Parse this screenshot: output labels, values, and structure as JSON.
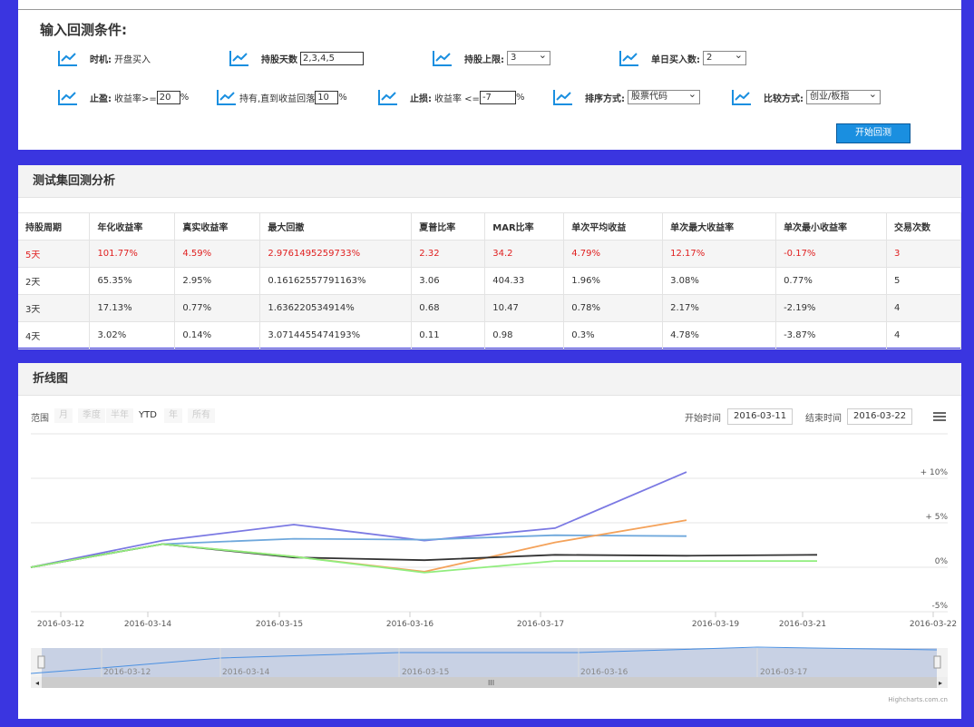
{
  "conditions": {
    "title": "输入回测条件:",
    "timing_label": "时机:",
    "timing_value": "开盘买入",
    "hold_days_label": "持股天数",
    "hold_days_value": "2,3,4,5",
    "hold_max_label": "持股上限:",
    "hold_max_value": "3",
    "daily_buy_label": "单日买入数:",
    "daily_buy_value": "2",
    "stop_profit_label": "止盈:",
    "stop_profit_text": "收益率>=",
    "stop_profit_value": "20",
    "stop_profit_unit": "%",
    "hold_label": "持有,直到收益回落",
    "hold_value": "10",
    "hold_unit": "%",
    "stop_loss_label": "止损:",
    "stop_loss_text": "收益率 <=",
    "stop_loss_value": "-7",
    "stop_loss_unit": "%",
    "sort_label": "排序方式:",
    "sort_value": "股票代码",
    "compare_label": "比较方式:",
    "compare_value": "创业/板指",
    "start_button": "开始回测"
  },
  "analysis": {
    "title": "测试集回测分析",
    "headers": [
      "持股周期",
      "年化收益率",
      "真实收益率",
      "最大回撤",
      "夏普比率",
      "MAR比率",
      "单次平均收益",
      "单次最大收益率",
      "单次最小收益率",
      "交易次数"
    ],
    "rows": [
      [
        "5天",
        "101.77%",
        "4.59%",
        "2.9761495259733%",
        "2.32",
        "34.2",
        "4.79%",
        "12.17%",
        "-0.17%",
        "3"
      ],
      [
        "2天",
        "65.35%",
        "2.95%",
        "0.16162557791163%",
        "3.06",
        "404.33",
        "1.96%",
        "3.08%",
        "0.77%",
        "5"
      ],
      [
        "3天",
        "17.13%",
        "0.77%",
        "1.636220534914%",
        "0.68",
        "10.47",
        "0.78%",
        "2.17%",
        "-2.19%",
        "4"
      ],
      [
        "4天",
        "3.02%",
        "0.14%",
        "3.0714455474193%",
        "0.11",
        "0.98",
        "0.3%",
        "4.78%",
        "-3.87%",
        "4"
      ]
    ]
  },
  "chart_panel": {
    "title": "折线图",
    "range_label": "范围",
    "range_buttons": [
      "月",
      "季度",
      "半年",
      "YTD",
      "年",
      "所有"
    ],
    "start_label": "开始时间",
    "start_date": "2016-03-11",
    "end_label": "结束时间",
    "end_date": "2016-03-22",
    "credit": "Highcharts.com.cn"
  },
  "chart_data": {
    "type": "line",
    "title": "",
    "x": [
      "2016-03-11",
      "2016-03-14",
      "2016-03-15",
      "2016-03-16",
      "2016-03-17",
      "2016-03-18",
      "2016-03-21"
    ],
    "xticks": [
      "2016-03-12",
      "2016-03-14",
      "2016-03-15",
      "2016-03-16",
      "2016-03-17",
      "2016-03-19",
      "2016-03-21",
      "2016-03-22"
    ],
    "yticks": [
      "+ 10%",
      "+ 5%",
      "0%",
      "-5%"
    ],
    "ylim": [
      -5,
      10
    ],
    "series": [
      {
        "color": "#7b79e3",
        "values": [
          0,
          3.0,
          4.8,
          3.0,
          4.4,
          10.7,
          null
        ]
      },
      {
        "color": "#6fa8dc",
        "values": [
          0,
          2.6,
          3.2,
          3.1,
          3.6,
          3.5,
          null
        ]
      },
      {
        "color": "#f4a25a",
        "values": [
          0,
          2.6,
          1.2,
          -0.5,
          2.8,
          5.3,
          null
        ]
      },
      {
        "color": "#333333",
        "values": [
          0,
          2.6,
          1.1,
          0.8,
          1.4,
          1.3,
          1.4
        ]
      },
      {
        "color": "#90ed7d",
        "values": [
          0,
          2.6,
          1.2,
          -0.6,
          0.7,
          0.7,
          0.7
        ]
      }
    ],
    "navigator_ticks": [
      "2016-03-12",
      "2016-03-14",
      "2016-03-15",
      "2016-03-16",
      "2016-03-17"
    ],
    "grid": true,
    "legend": "none"
  }
}
